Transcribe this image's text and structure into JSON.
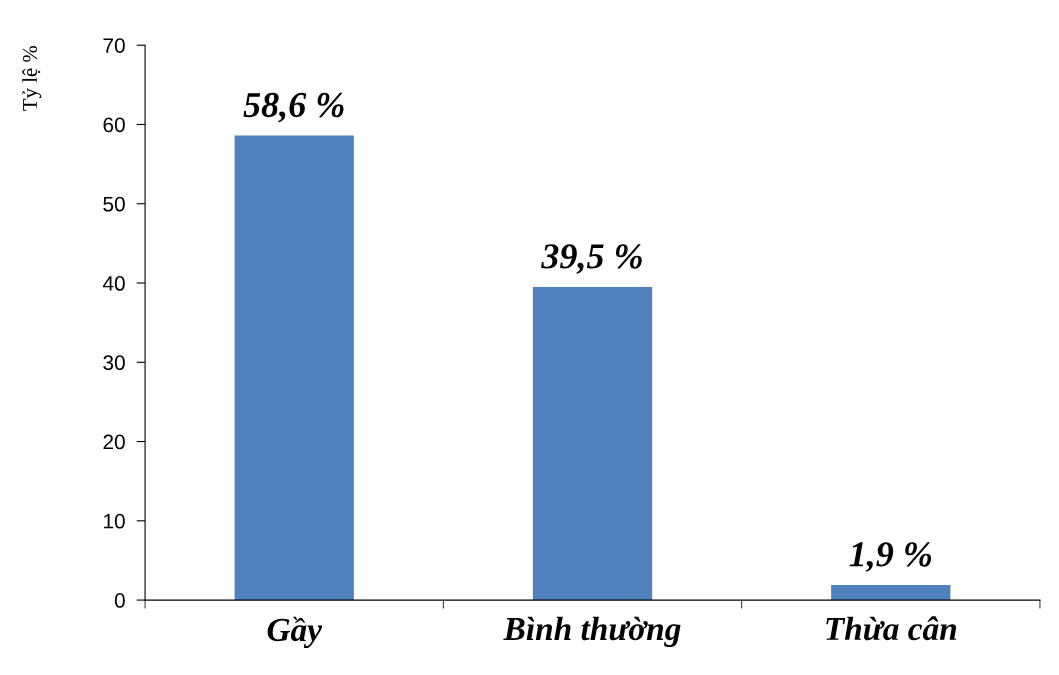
{
  "chart_data": {
    "type": "bar",
    "ylabel": "Tỷ lệ %",
    "categories": [
      "Gầy",
      "Bình thường",
      "Thừa cân"
    ],
    "values": [
      58.6,
      39.5,
      1.9
    ],
    "value_labels": [
      "58,6 %",
      "39,5 %",
      "1,9 %"
    ],
    "color": "#4f81bd",
    "ylim": [
      0,
      70
    ],
    "yticks": [
      0,
      10,
      20,
      30,
      40,
      50,
      60,
      70
    ],
    "grid": false,
    "legend": false
  }
}
